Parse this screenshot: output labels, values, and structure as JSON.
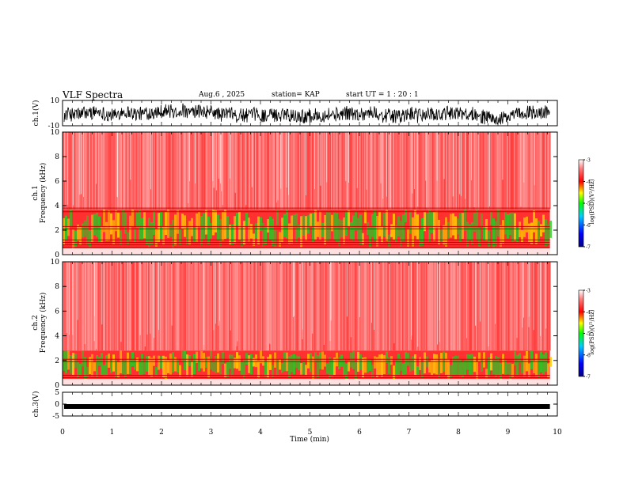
{
  "header": {
    "title": "VLF Spectra",
    "date": "Aug.6 , 2025",
    "station": "station= KAP",
    "start": "start UT = 1 : 20 : 1"
  },
  "colors": {
    "trace": "#000000",
    "background": "#ffffff",
    "spectrogram_low": "#22cc22",
    "spectrogram_mid": "#ffcc00",
    "spectrogram_high": "#ff0000",
    "spectrogram_bg": "#ffdede"
  },
  "chart_data": [
    {
      "type": "line",
      "name": "ch1-waveform",
      "ylabel": "ch.1(V)",
      "ylim": [
        -10,
        10
      ],
      "yticks": [
        "10",
        "-10"
      ],
      "description_values": {
        "mean": -1,
        "min": -10,
        "max": 10
      }
    },
    {
      "type": "heatmap",
      "name": "ch1-spectrogram",
      "ylabel_line1": "ch.1",
      "ylabel_line2": "Frequency (kHz)",
      "ylim": [
        0,
        10
      ],
      "yticks": [
        "0",
        "2",
        "4",
        "6",
        "8",
        "10"
      ],
      "bands": [
        {
          "from_khz": 0.5,
          "to_khz": 3.7,
          "level": "high"
        },
        {
          "from_khz": 3.7,
          "to_khz": 10,
          "level": "background"
        }
      ],
      "lines_khz": [
        0.4,
        0.6,
        0.8,
        1.0,
        1.2,
        2.1,
        2.3,
        3.5,
        3.8
      ]
    },
    {
      "type": "heatmap",
      "name": "ch2-spectrogram",
      "ylabel_line1": "ch.2",
      "ylabel_line2": "Frequency (kHz)",
      "ylim": [
        0,
        10
      ],
      "yticks": [
        "0",
        "2",
        "4",
        "6",
        "8",
        "10"
      ],
      "bands": [
        {
          "from_khz": 0.5,
          "to_khz": 2.8,
          "level": "high"
        },
        {
          "from_khz": 2.8,
          "to_khz": 10,
          "level": "background"
        }
      ],
      "lines_khz": [
        0.4,
        0.6,
        0.8,
        1.9,
        2.1
      ]
    },
    {
      "type": "line",
      "name": "ch3-waveform",
      "ylabel": "ch.3(V)",
      "ylim": [
        -5,
        5
      ],
      "yticks": [
        "5",
        "0",
        "-5"
      ],
      "level_v": -1
    }
  ],
  "colorbars": [
    {
      "label": "log(PSD)(V²/Hz)",
      "ticks": [
        "-3",
        "-4",
        "-5",
        "-6",
        "-7"
      ],
      "range": [
        -7,
        -3
      ]
    },
    {
      "label": "log(PSD)(V²/Hz)",
      "ticks": [
        "-3",
        "-4",
        "-5",
        "-6",
        "-7"
      ],
      "range": [
        -7,
        -3
      ]
    }
  ],
  "time_axis": {
    "label": "Time (min)",
    "range": [
      0,
      10
    ],
    "ticks": [
      "0",
      "1",
      "2",
      "3",
      "4",
      "5",
      "6",
      "7",
      "8",
      "9",
      "10"
    ],
    "data_end_min": 9.85
  }
}
